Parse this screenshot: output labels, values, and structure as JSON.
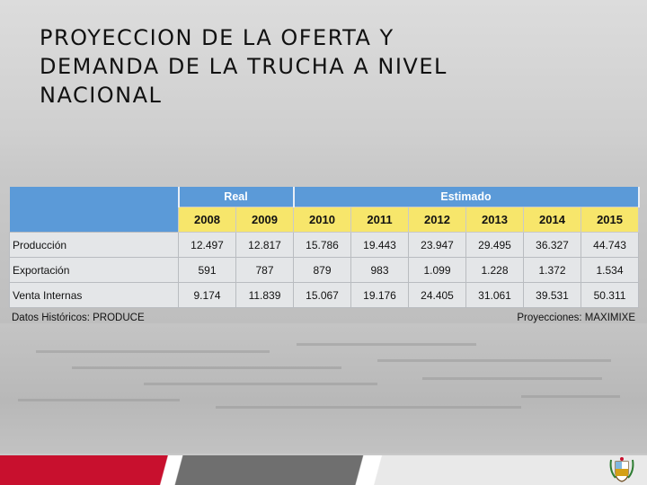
{
  "slide": {
    "title_lines": [
      "PROYECCION DE LA OFERTA Y",
      "DEMANDA DE LA TRUCHA A NIVEL",
      "NACIONAL"
    ]
  },
  "table": {
    "groups": {
      "real": "Real",
      "estimado": "Estimado"
    },
    "years": [
      "2008",
      "2009",
      "2010",
      "2011",
      "2012",
      "2013",
      "2014",
      "2015"
    ],
    "rows": [
      {
        "label": "Producción",
        "values": [
          "12.497",
          "12.817",
          "15.786",
          "19.443",
          "23.947",
          "29.495",
          "36.327",
          "44.743"
        ]
      },
      {
        "label": "Exportación",
        "values": [
          "591",
          "787",
          "879",
          "983",
          "1.099",
          "1.228",
          "1.372",
          "1.534"
        ]
      },
      {
        "label": "Venta Internas",
        "values": [
          "9.174",
          "11.839",
          "15.067",
          "19.176",
          "24.405",
          "31.061",
          "39.531",
          "50.311"
        ]
      }
    ],
    "source_left": "Datos Históricos: PRODUCE",
    "source_right": "Proyecciones: MAXIMIXE"
  },
  "colors": {
    "header_blue": "#5b9ad8",
    "year_yellow": "#f7e66b",
    "footer_red": "#c8102e",
    "footer_gray": "#6f6f6f"
  },
  "icons": {
    "crest": "peru-coat-of-arms-icon"
  }
}
